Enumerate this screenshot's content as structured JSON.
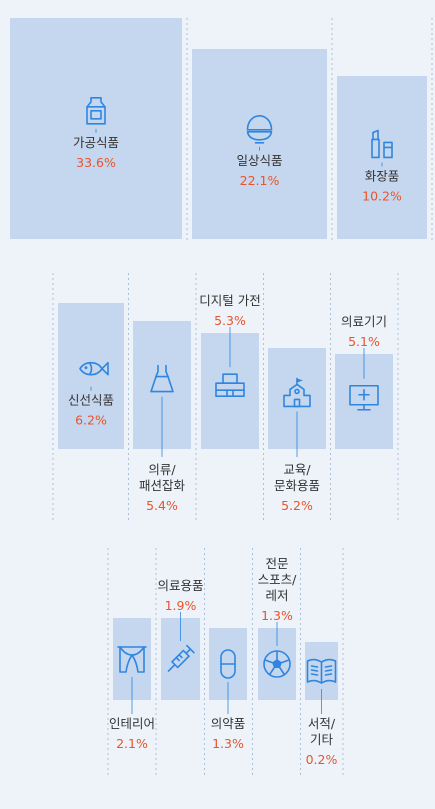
{
  "chart_data": {
    "type": "bar",
    "title": "",
    "colors": {
      "bar": "#c5d7ee",
      "icon": "#2f86e0",
      "value": "#e8542c",
      "label": "#333333",
      "guide": "#a9c0db"
    },
    "rows": [
      {
        "items": [
          {
            "label": [
              "가공식품"
            ],
            "value": 33.6,
            "value_text": "33.6%",
            "icon": "milk-carton-icon"
          },
          {
            "label": [
              "일상식품"
            ],
            "value": 22.1,
            "value_text": "22.1%",
            "icon": "rice-bowl-icon"
          },
          {
            "label": [
              "화장품"
            ],
            "value": 10.2,
            "value_text": "10.2%",
            "icon": "cosmetics-icon"
          }
        ]
      },
      {
        "items": [
          {
            "label": [
              "신선식품"
            ],
            "value": 6.2,
            "value_text": "6.2%",
            "icon": "fish-icon"
          },
          {
            "label": [
              "의류/",
              "패션잡화"
            ],
            "value": 5.4,
            "value_text": "5.4%",
            "icon": "dress-icon"
          },
          {
            "label": [
              "디지털 가전"
            ],
            "value": 5.3,
            "value_text": "5.3%",
            "icon": "computer-icon"
          },
          {
            "label": [
              "교육/",
              "문화용품"
            ],
            "value": 5.2,
            "value_text": "5.2%",
            "icon": "school-icon"
          },
          {
            "label": [
              "의료기기"
            ],
            "value": 5.1,
            "value_text": "5.1%",
            "icon": "medical-monitor-icon"
          }
        ]
      },
      {
        "items": [
          {
            "label": [
              "인테리어"
            ],
            "value": 2.1,
            "value_text": "2.1%",
            "icon": "curtain-icon"
          },
          {
            "label": [
              "의료용품"
            ],
            "value": 1.9,
            "value_text": "1.9%",
            "icon": "syringe-icon"
          },
          {
            "label": [
              "의약품"
            ],
            "value": 1.3,
            "value_text": "1.3%",
            "icon": "pill-icon"
          },
          {
            "label": [
              "전문",
              "스포츠/",
              "레저"
            ],
            "value": 1.3,
            "value_text": "1.3%",
            "icon": "soccer-ball-icon"
          },
          {
            "label": [
              "서적/",
              "기타"
            ],
            "value": 0.2,
            "value_text": "0.2%",
            "icon": "book-icon"
          }
        ]
      }
    ]
  }
}
